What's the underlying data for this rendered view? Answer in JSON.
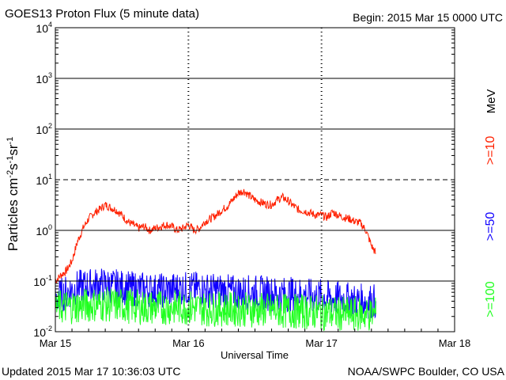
{
  "header": {
    "title": "GOES13 Proton Flux (5 minute data)",
    "begin": "Begin: 2015 Mar 15 0000 UTC"
  },
  "footer": {
    "updated": "Updated 2015 Mar 17 10:36:03 UTC",
    "credit": "NOAA/SWPC Boulder, CO USA"
  },
  "chart_data": {
    "type": "line",
    "title": "GOES13 Proton Flux (5 minute data)",
    "xlabel": "Universal Time",
    "ylabel": "Particles cm-2s-1sr-1",
    "unit_label": "MeV",
    "y_scale": "log",
    "ylim": [
      0.01,
      10000
    ],
    "y_ticks": [
      {
        "base": "10",
        "exp": "-2",
        "value": 0.01
      },
      {
        "base": "10",
        "exp": "-1",
        "value": 0.1
      },
      {
        "base": "10",
        "exp": "0",
        "value": 1
      },
      {
        "base": "10",
        "exp": "1",
        "value": 10
      },
      {
        "base": "10",
        "exp": "2",
        "value": 100
      },
      {
        "base": "10",
        "exp": "3",
        "value": 1000
      },
      {
        "base": "10",
        "exp": "4",
        "value": 10000
      }
    ],
    "x_unit": "hours since 2015 Mar 15 0000 UTC",
    "xlim": [
      0,
      72
    ],
    "x_ticks": [
      {
        "label": "Mar 15",
        "value": 0
      },
      {
        "label": "Mar 16",
        "value": 24
      },
      {
        "label": "Mar 17",
        "value": 48
      },
      {
        "label": "Mar 18",
        "value": 72
      }
    ],
    "threshold_lines": [
      10,
      1,
      0.1
    ],
    "series": [
      {
        "name": ">=10",
        "color": "#ff2000",
        "x": [
          0,
          1,
          2,
          3,
          4,
          5,
          6,
          7,
          8,
          9,
          10,
          11,
          12,
          13,
          14,
          15,
          16,
          17,
          18,
          19,
          20,
          21,
          22,
          23,
          24,
          25,
          26,
          27,
          28,
          29,
          30,
          31,
          32,
          33,
          34,
          35,
          36,
          37,
          38,
          39,
          40,
          41,
          42,
          43,
          44,
          45,
          46,
          47,
          48,
          49,
          50,
          51,
          52,
          53,
          54,
          55,
          56,
          57,
          57.8
        ],
        "y": [
          0.1,
          0.13,
          0.16,
          0.25,
          0.6,
          1.1,
          1.7,
          2.2,
          2.6,
          3.2,
          2.8,
          2.5,
          2.0,
          1.5,
          1.3,
          1.1,
          1.2,
          1.0,
          1.1,
          1.2,
          1.3,
          1.2,
          1.0,
          1.1,
          1.3,
          1.0,
          1.1,
          1.5,
          1.7,
          2.0,
          2.5,
          3.0,
          4.0,
          5.5,
          6.0,
          4.8,
          4.0,
          3.6,
          3.3,
          3.2,
          4.0,
          4.5,
          3.8,
          3.0,
          2.5,
          2.4,
          2.2,
          2.0,
          2.0,
          1.8,
          2.3,
          2.0,
          1.8,
          1.7,
          1.5,
          1.4,
          1.0,
          0.5,
          0.35
        ]
      },
      {
        "name": ">=50",
        "color": "#1000ff",
        "x": [
          0,
          2,
          4,
          6,
          8,
          10,
          12,
          14,
          16,
          18,
          20,
          22,
          24,
          26,
          28,
          30,
          32,
          34,
          36,
          38,
          40,
          42,
          44,
          46,
          48,
          50,
          52,
          54,
          56,
          57.8
        ],
        "y": [
          0.045,
          0.06,
          0.075,
          0.08,
          0.085,
          0.08,
          0.075,
          0.07,
          0.07,
          0.065,
          0.065,
          0.07,
          0.07,
          0.07,
          0.065,
          0.065,
          0.06,
          0.06,
          0.06,
          0.058,
          0.055,
          0.055,
          0.055,
          0.05,
          0.05,
          0.045,
          0.045,
          0.04,
          0.04,
          0.04
        ]
      },
      {
        "name": ">=100",
        "color": "#20ff20",
        "x": [
          0,
          4,
          8,
          12,
          16,
          20,
          24,
          28,
          32,
          36,
          40,
          44,
          48,
          52,
          56,
          57.8
        ],
        "y": [
          0.03,
          0.032,
          0.035,
          0.033,
          0.03,
          0.03,
          0.03,
          0.028,
          0.028,
          0.027,
          0.026,
          0.025,
          0.024,
          0.022,
          0.022,
          0.022
        ]
      }
    ]
  }
}
